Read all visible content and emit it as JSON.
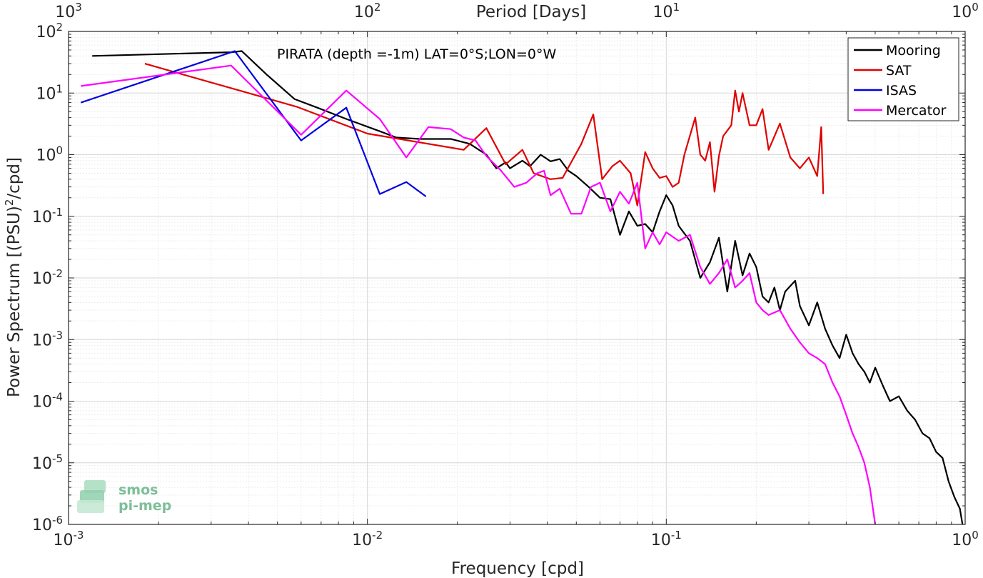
{
  "chart_data": {
    "type": "line",
    "title": "PIRATA (depth =-1m) LAT=0°S;LON=0°W",
    "xlabel": "Frequency [cpd]",
    "ylabel": "Power Spectrum [(PSU)²/cpd]",
    "ylabel_parts": {
      "before": "Power Spectrum [(PSU)",
      "sup": "2",
      "after": "/cpd]"
    },
    "top_axis_label": "Period [Days]",
    "x_scale": "log",
    "y_scale": "log",
    "xlim": [
      0.001,
      1
    ],
    "ylim": [
      1e-06,
      100
    ],
    "x_ticks": [
      {
        "base": "10",
        "exp": "-3"
      },
      {
        "base": "10",
        "exp": "-2"
      },
      {
        "base": "10",
        "exp": "-1"
      },
      {
        "base": "10",
        "exp": "0"
      }
    ],
    "y_ticks": [
      {
        "base": "10",
        "exp": "-6"
      },
      {
        "base": "10",
        "exp": "-5"
      },
      {
        "base": "10",
        "exp": "-4"
      },
      {
        "base": "10",
        "exp": "-3"
      },
      {
        "base": "10",
        "exp": "-2"
      },
      {
        "base": "10",
        "exp": "-1"
      },
      {
        "base": "10",
        "exp": "0"
      },
      {
        "base": "10",
        "exp": "1"
      },
      {
        "base": "10",
        "exp": "2"
      }
    ],
    "top_ticks": [
      {
        "base": "10",
        "exp": "3"
      },
      {
        "base": "10",
        "exp": "2"
      },
      {
        "base": "10",
        "exp": "1"
      },
      {
        "base": "10",
        "exp": "0"
      }
    ],
    "grid": true,
    "legend_position": "top-right",
    "series": [
      {
        "name": "Mooring",
        "color": "#000000",
        "points": [
          [
            0.0012,
            40
          ],
          [
            0.0035,
            46
          ],
          [
            0.0038,
            48
          ],
          [
            0.0046,
            20
          ],
          [
            0.0057,
            8
          ],
          [
            0.0068,
            5.8
          ],
          [
            0.0085,
            3.8
          ],
          [
            0.011,
            2.4
          ],
          [
            0.0125,
            1.9
          ],
          [
            0.015,
            1.8
          ],
          [
            0.019,
            1.8
          ],
          [
            0.022,
            1.5
          ],
          [
            0.025,
            1.0
          ],
          [
            0.027,
            0.6
          ],
          [
            0.029,
            0.75
          ],
          [
            0.03,
            0.6
          ],
          [
            0.033,
            0.8
          ],
          [
            0.035,
            0.65
          ],
          [
            0.038,
            1.0
          ],
          [
            0.041,
            0.78
          ],
          [
            0.044,
            0.85
          ],
          [
            0.047,
            0.55
          ],
          [
            0.05,
            0.45
          ],
          [
            0.055,
            0.3
          ],
          [
            0.06,
            0.2
          ],
          [
            0.065,
            0.19
          ],
          [
            0.07,
            0.05
          ],
          [
            0.075,
            0.12
          ],
          [
            0.08,
            0.07
          ],
          [
            0.085,
            0.075
          ],
          [
            0.09,
            0.055
          ],
          [
            0.095,
            0.12
          ],
          [
            0.1,
            0.22
          ],
          [
            0.105,
            0.15
          ],
          [
            0.11,
            0.07
          ],
          [
            0.12,
            0.04
          ],
          [
            0.13,
            0.01
          ],
          [
            0.14,
            0.018
          ],
          [
            0.15,
            0.045
          ],
          [
            0.16,
            0.006
          ],
          [
            0.17,
            0.04
          ],
          [
            0.18,
            0.011
          ],
          [
            0.19,
            0.025
          ],
          [
            0.2,
            0.015
          ],
          [
            0.21,
            0.005
          ],
          [
            0.22,
            0.004
          ],
          [
            0.23,
            0.007
          ],
          [
            0.24,
            0.003
          ],
          [
            0.25,
            0.006
          ],
          [
            0.27,
            0.009
          ],
          [
            0.28,
            0.0035
          ],
          [
            0.3,
            0.0017
          ],
          [
            0.32,
            0.004
          ],
          [
            0.34,
            0.0015
          ],
          [
            0.36,
            0.0008
          ],
          [
            0.38,
            0.0005
          ],
          [
            0.4,
            0.0012
          ],
          [
            0.42,
            0.0006
          ],
          [
            0.44,
            0.0004
          ],
          [
            0.46,
            0.0003
          ],
          [
            0.48,
            0.0002
          ],
          [
            0.5,
            0.00035
          ],
          [
            0.53,
            0.00018
          ],
          [
            0.56,
            0.0001
          ],
          [
            0.6,
            0.00012
          ],
          [
            0.64,
            7e-05
          ],
          [
            0.68,
            5e-05
          ],
          [
            0.72,
            3e-05
          ],
          [
            0.76,
            2.5e-05
          ],
          [
            0.8,
            1.5e-05
          ],
          [
            0.84,
            1.2e-05
          ],
          [
            0.88,
            5e-06
          ],
          [
            0.92,
            2.8e-06
          ],
          [
            0.96,
            1.8e-06
          ],
          [
            0.98,
            1e-06
          ]
        ]
      },
      {
        "name": "SAT",
        "color": "#e00000",
        "points": [
          [
            0.0018,
            30
          ],
          [
            0.0058,
            6.0
          ],
          [
            0.01,
            2.2
          ],
          [
            0.021,
            1.2
          ],
          [
            0.025,
            2.7
          ],
          [
            0.029,
            0.7
          ],
          [
            0.033,
            1.2
          ],
          [
            0.036,
            0.5
          ],
          [
            0.041,
            0.4
          ],
          [
            0.045,
            0.42
          ],
          [
            0.052,
            1.5
          ],
          [
            0.057,
            4.5
          ],
          [
            0.061,
            0.4
          ],
          [
            0.066,
            0.65
          ],
          [
            0.07,
            0.8
          ],
          [
            0.076,
            0.5
          ],
          [
            0.08,
            0.15
          ],
          [
            0.085,
            1.1
          ],
          [
            0.09,
            0.6
          ],
          [
            0.095,
            0.42
          ],
          [
            0.1,
            0.45
          ],
          [
            0.105,
            0.3
          ],
          [
            0.11,
            0.35
          ],
          [
            0.115,
            1.0
          ],
          [
            0.125,
            4.0
          ],
          [
            0.13,
            1.0
          ],
          [
            0.135,
            0.8
          ],
          [
            0.14,
            1.6
          ],
          [
            0.145,
            0.25
          ],
          [
            0.15,
            0.95
          ],
          [
            0.155,
            2.0
          ],
          [
            0.165,
            3.0
          ],
          [
            0.17,
            11
          ],
          [
            0.175,
            5.0
          ],
          [
            0.18,
            10
          ],
          [
            0.19,
            3.0
          ],
          [
            0.2,
            3.0
          ],
          [
            0.21,
            5.5
          ],
          [
            0.22,
            1.2
          ],
          [
            0.24,
            3.2
          ],
          [
            0.26,
            0.9
          ],
          [
            0.28,
            0.6
          ],
          [
            0.3,
            0.9
          ],
          [
            0.32,
            0.45
          ],
          [
            0.33,
            2.8
          ],
          [
            0.335,
            0.23
          ]
        ]
      },
      {
        "name": "ISAS",
        "color": "#0000e0",
        "points": [
          [
            0.0011,
            7
          ],
          [
            0.0036,
            48
          ],
          [
            0.006,
            1.7
          ],
          [
            0.0085,
            5.8
          ],
          [
            0.011,
            0.23
          ],
          [
            0.0135,
            0.36
          ],
          [
            0.0157,
            0.21
          ]
        ]
      },
      {
        "name": "Mercator",
        "color": "#ff00ff",
        "points": [
          [
            0.0011,
            13
          ],
          [
            0.0035,
            28
          ],
          [
            0.006,
            2.1
          ],
          [
            0.0085,
            11
          ],
          [
            0.011,
            3.8
          ],
          [
            0.0135,
            0.9
          ],
          [
            0.016,
            2.8
          ],
          [
            0.019,
            2.6
          ],
          [
            0.021,
            1.9
          ],
          [
            0.023,
            1.7
          ],
          [
            0.025,
            0.95
          ],
          [
            0.028,
            0.55
          ],
          [
            0.031,
            0.3
          ],
          [
            0.034,
            0.35
          ],
          [
            0.037,
            0.5
          ],
          [
            0.039,
            0.55
          ],
          [
            0.041,
            0.22
          ],
          [
            0.044,
            0.28
          ],
          [
            0.048,
            0.11
          ],
          [
            0.052,
            0.11
          ],
          [
            0.056,
            0.3
          ],
          [
            0.06,
            0.35
          ],
          [
            0.065,
            0.12
          ],
          [
            0.07,
            0.25
          ],
          [
            0.075,
            0.16
          ],
          [
            0.08,
            0.35
          ],
          [
            0.085,
            0.03
          ],
          [
            0.09,
            0.055
          ],
          [
            0.095,
            0.035
          ],
          [
            0.1,
            0.055
          ],
          [
            0.11,
            0.04
          ],
          [
            0.12,
            0.05
          ],
          [
            0.13,
            0.015
          ],
          [
            0.14,
            0.008
          ],
          [
            0.15,
            0.012
          ],
          [
            0.16,
            0.02
          ],
          [
            0.17,
            0.007
          ],
          [
            0.18,
            0.009
          ],
          [
            0.19,
            0.012
          ],
          [
            0.2,
            0.004
          ],
          [
            0.21,
            0.003
          ],
          [
            0.22,
            0.0025
          ],
          [
            0.24,
            0.003
          ],
          [
            0.26,
            0.0015
          ],
          [
            0.28,
            0.0009
          ],
          [
            0.3,
            0.0006
          ],
          [
            0.32,
            0.0005
          ],
          [
            0.34,
            0.0004
          ],
          [
            0.36,
            0.0002
          ],
          [
            0.38,
            0.00012
          ],
          [
            0.4,
            6e-05
          ],
          [
            0.42,
            3e-05
          ],
          [
            0.44,
            1.8e-05
          ],
          [
            0.46,
            1e-05
          ],
          [
            0.48,
            4e-06
          ],
          [
            0.5,
            1e-06
          ]
        ]
      }
    ]
  },
  "logo": {
    "line1": "smos",
    "line2": "pi-mep"
  }
}
